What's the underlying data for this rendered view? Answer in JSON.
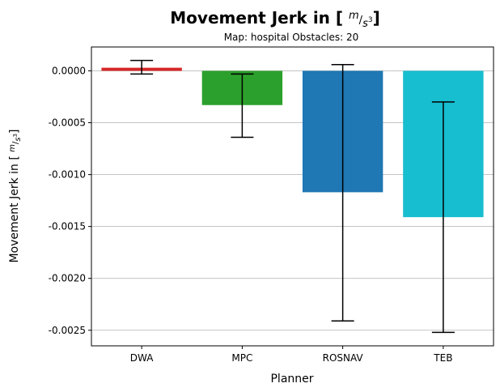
{
  "chart_data": {
    "type": "bar",
    "title": "Movement Jerk in [m/s³]",
    "title_prefix": "Movement Jerk in [",
    "title_unit_num": "m",
    "title_unit_den": "s",
    "title_unit_exp": "3",
    "title_suffix": "]",
    "subtitle": "Map: hospital Obstacles: 20",
    "xlabel": "Planner",
    "ylabel": "Movement Jerk in [m/s³]",
    "ylabel_prefix": "Movement Jerk in [",
    "ylabel_suffix": "]",
    "categories": [
      "DWA",
      "MPC",
      "ROSNAV",
      "TEB"
    ],
    "values": [
      3e-05,
      -0.00033,
      -0.00117,
      -0.00141
    ],
    "error_low": [
      -3e-05,
      -0.00064,
      -0.00241,
      -0.00252
    ],
    "error_high": [
      0.0001,
      -3e-05,
      6e-05,
      -0.0003
    ],
    "colors": [
      "#d62728",
      "#2ca02c",
      "#1f77b4",
      "#17becf"
    ],
    "ylim": [
      -0.00265,
      0.00023
    ],
    "yticks": [
      0.0,
      -0.0005,
      -0.001,
      -0.0015,
      -0.002,
      -0.0025
    ],
    "ytick_labels": [
      "0.0000",
      "-0.0005",
      "-0.0010",
      "-0.0015",
      "-0.0020",
      "-0.0025"
    ],
    "grid": "y"
  }
}
